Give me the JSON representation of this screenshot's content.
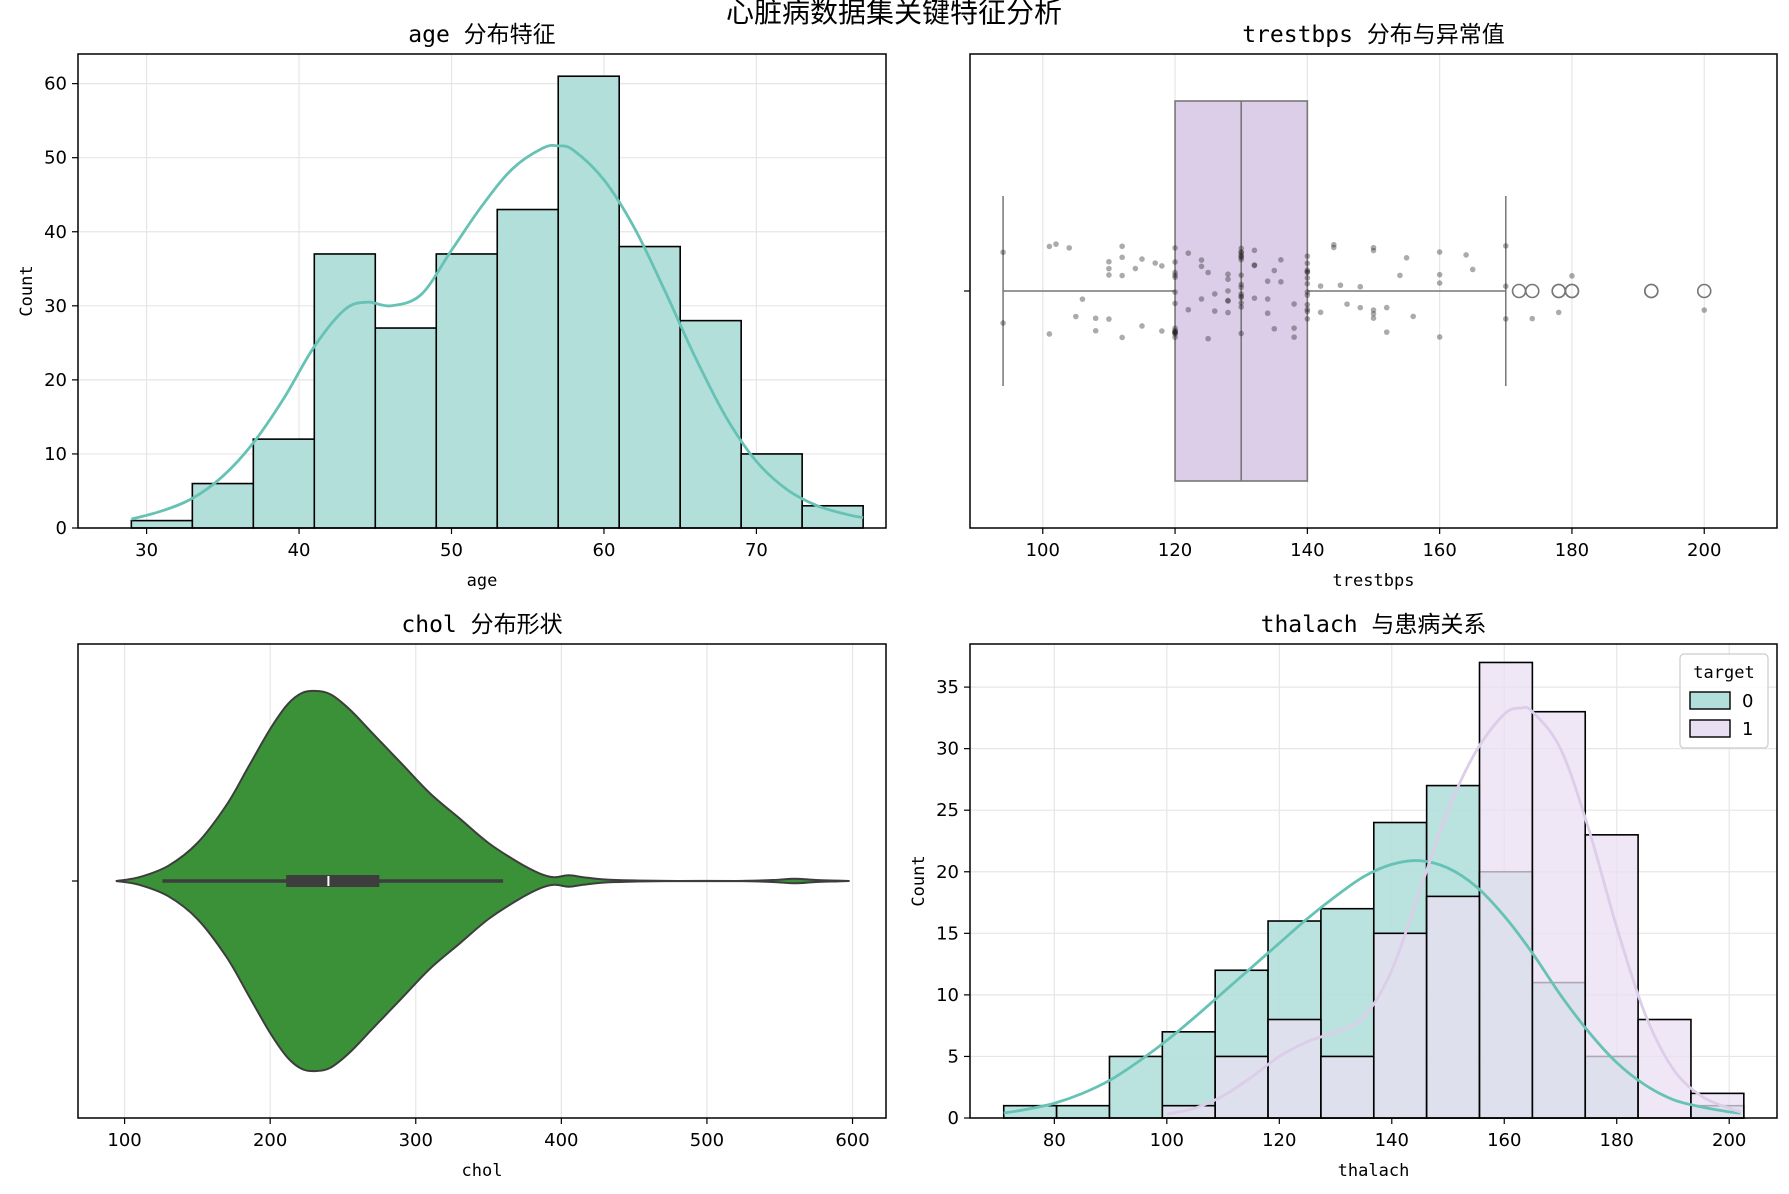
{
  "figure": {
    "title": "心脏病数据集关键特征分析"
  },
  "colors": {
    "teal": "#66c2b5",
    "teal_fill": "#b2dfda",
    "lavender": "#dccde9",
    "lavender_fill": "#e9dff2",
    "green": "#3a9138",
    "dark": "#3d3d3d",
    "grid": "#e6e6e6"
  },
  "chart_data": [
    {
      "id": "age",
      "type": "bar",
      "title": "age 分布特征",
      "xlabel": "age",
      "ylabel": "Count",
      "xlim": [
        25.5,
        78.5
      ],
      "ylim": [
        0,
        64
      ],
      "xticks": [
        30,
        40,
        50,
        60,
        70
      ],
      "yticks": [
        0,
        10,
        20,
        30,
        40,
        50,
        60
      ],
      "bin_edges": [
        29,
        33,
        37,
        41,
        45,
        49,
        53,
        57,
        61,
        65,
        69,
        73,
        77
      ],
      "values": [
        1,
        6,
        12,
        37,
        27,
        37,
        43,
        61,
        38,
        28,
        10,
        3
      ],
      "kde": {
        "x": [
          29,
          31,
          33,
          35,
          37,
          39,
          41,
          43,
          44.5,
          46,
          48,
          50,
          52,
          54,
          56,
          57,
          58,
          60,
          62,
          64,
          66,
          68,
          70,
          72,
          74,
          76,
          77
        ],
        "y": [
          1.2,
          2.3,
          4.0,
          7.0,
          11.5,
          17.5,
          24.5,
          29.5,
          30.5,
          30.0,
          31.5,
          37.5,
          43.5,
          48.5,
          51.3,
          51.6,
          51.0,
          47.0,
          40.5,
          32.0,
          23.0,
          15.0,
          9.0,
          5.2,
          3.0,
          1.8,
          1.4
        ]
      },
      "grid": true
    },
    {
      "id": "trestbps",
      "type": "box",
      "title": "trestbps 分布与异常值",
      "xlabel": "trestbps",
      "xlim": [
        89,
        211
      ],
      "xticks": [
        100,
        120,
        140,
        160,
        180,
        200
      ],
      "box": {
        "whisker_low": 94,
        "q1": 120,
        "median": 130,
        "q3": 140,
        "whisker_high": 170
      },
      "outliers": [
        172,
        174,
        178,
        178,
        180,
        180,
        192,
        192,
        200
      ],
      "points": [
        94,
        94,
        101,
        101,
        102,
        104,
        105,
        106,
        108,
        108,
        110,
        110,
        110,
        110,
        112,
        112,
        112,
        112,
        114,
        115,
        115,
        117,
        118,
        118,
        120,
        120,
        120,
        120,
        120,
        120,
        120,
        120,
        120,
        120,
        120,
        120,
        120,
        120,
        120,
        122,
        122,
        124,
        124,
        124,
        125,
        125,
        126,
        126,
        128,
        128,
        128,
        128,
        128,
        128,
        130,
        130,
        130,
        130,
        130,
        130,
        130,
        130,
        130,
        130,
        130,
        130,
        130,
        130,
        130,
        130,
        132,
        132,
        132,
        132,
        134,
        134,
        134,
        135,
        135,
        136,
        136,
        138,
        138,
        138,
        140,
        140,
        140,
        140,
        140,
        140,
        140,
        140,
        140,
        140,
        140,
        140,
        140,
        142,
        142,
        144,
        144,
        145,
        146,
        148,
        148,
        150,
        150,
        150,
        150,
        150,
        152,
        152,
        154,
        155,
        156,
        160,
        160,
        160,
        160,
        164,
        165,
        170,
        170,
        170,
        174,
        178,
        180,
        200
      ],
      "grid": true
    },
    {
      "id": "chol",
      "type": "violin",
      "title": "chol 分布形状",
      "xlabel": "chol",
      "xlim": [
        68,
        623
      ],
      "xticks": [
        100,
        200,
        300,
        400,
        500,
        600
      ],
      "density": {
        "x": [
          94,
          110,
          130,
          150,
          170,
          185,
          200,
          212,
          222,
          232,
          242,
          255,
          270,
          290,
          310,
          330,
          350,
          370,
          385,
          395,
          405,
          415,
          430,
          450,
          480,
          520,
          545,
          560,
          575,
          590,
          598
        ],
        "w": [
          0.0,
          0.02,
          0.08,
          0.2,
          0.4,
          0.6,
          0.8,
          0.93,
          0.99,
          1.0,
          0.98,
          0.9,
          0.78,
          0.62,
          0.46,
          0.33,
          0.2,
          0.1,
          0.04,
          0.02,
          0.03,
          0.02,
          0.008,
          0.003,
          0.0,
          0.0,
          0.005,
          0.012,
          0.005,
          0.002,
          0.0
        ]
      },
      "inner_box": {
        "whisker_low": 126,
        "q1": 211,
        "median": 240,
        "q3": 275,
        "whisker_high": 360
      },
      "grid": true
    },
    {
      "id": "thalach",
      "type": "bar",
      "title": "thalach 与患病关系",
      "xlabel": "thalach",
      "ylabel": "Count",
      "xlim": [
        65,
        208.5
      ],
      "ylim": [
        0,
        38.5
      ],
      "xticks": [
        80,
        100,
        120,
        140,
        160,
        180,
        200
      ],
      "yticks": [
        0,
        5,
        10,
        15,
        20,
        25,
        30,
        35
      ],
      "bin_edges": [
        71,
        80.4,
        89.8,
        99.2,
        108.6,
        118,
        127.4,
        136.8,
        146.2,
        155.6,
        165,
        174.4,
        183.8,
        193.2,
        202.6
      ],
      "legend": {
        "title": "target",
        "position": "top-right"
      },
      "series": [
        {
          "name": "0",
          "values": [
            1,
            1,
            5,
            7,
            12,
            16,
            17,
            24,
            27,
            20,
            11,
            5,
            0,
            1
          ],
          "kde": {
            "x": [
              71,
              75,
              80,
              85,
              90,
              95,
              100,
              105,
              110,
              115,
              120,
              125,
              130,
              135,
              140,
              145,
              150,
              155,
              160,
              165,
              170,
              175,
              180,
              185,
              190,
              195,
              200,
              202
            ],
            "y": [
              0.4,
              0.7,
              1.2,
              2.0,
              3.1,
              4.6,
              6.3,
              8.2,
              10.2,
              12.2,
              14.2,
              16.2,
              18.0,
              19.6,
              20.6,
              20.9,
              20.3,
              18.8,
              16.4,
              13.4,
              10.0,
              7.0,
              4.5,
              2.7,
              1.5,
              0.9,
              0.5,
              0.4
            ]
          }
        },
        {
          "name": "1",
          "values": [
            0,
            0,
            0,
            1,
            5,
            8,
            5,
            15,
            18,
            37,
            33,
            23,
            8,
            2
          ],
          "kde": {
            "x": [
              100,
              105,
              110,
              115,
              120,
              125,
              130,
              135,
              140,
              145,
              150,
              155,
              160,
              163,
              165,
              170,
              175,
              180,
              185,
              190,
              195,
              200,
              202
            ],
            "y": [
              0.3,
              0.8,
              1.8,
              3.3,
              5.0,
              6.2,
              7.0,
              8.2,
              12.0,
              18.5,
              25.0,
              29.8,
              32.8,
              33.3,
              33.0,
              30.0,
              23.5,
              15.5,
              8.5,
              4.0,
              1.8,
              0.8,
              0.5
            ]
          }
        }
      ],
      "grid": true
    }
  ]
}
